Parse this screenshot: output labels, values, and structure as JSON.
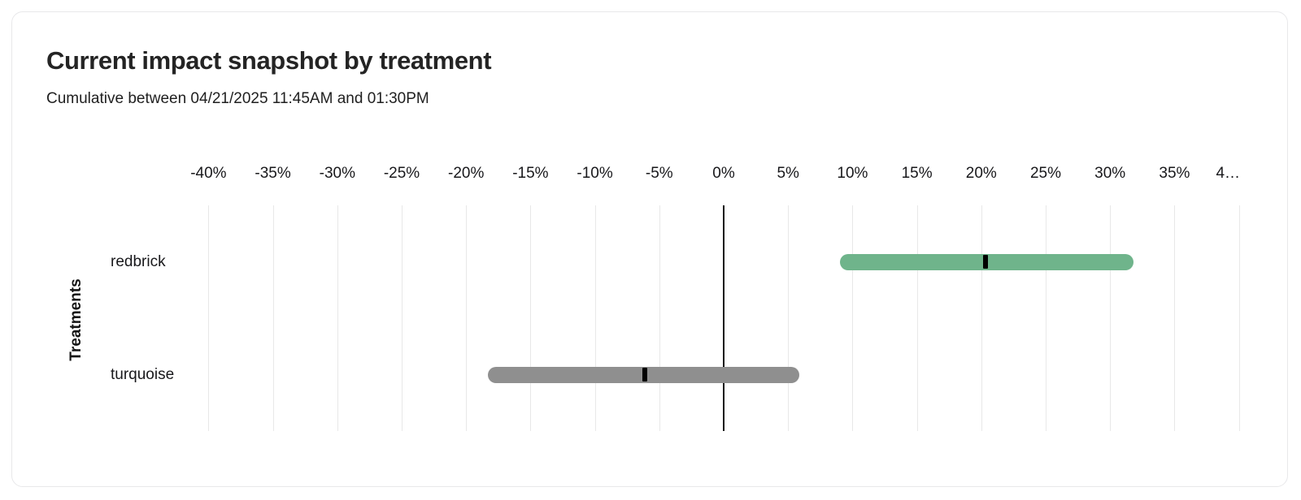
{
  "card": {
    "title": "Current impact snapshot by treatment",
    "subtitle": "Cumulative between 04/21/2025 11:45AM and 01:30PM"
  },
  "chart_data": {
    "type": "bar",
    "subtype": "horizontal_interval_bars_with_point_marker",
    "title": "Current impact snapshot by treatment",
    "subtitle": "Cumulative between 04/21/2025 11:45AM and 01:30PM",
    "xlabel": "",
    "ylabel": "Treatments",
    "categories": [
      "redbrick",
      "turquoise"
    ],
    "series": [
      {
        "name": "redbrick",
        "low": 9.0,
        "high": 31.8,
        "point": 20.3,
        "color": "#6FB48B"
      },
      {
        "name": "turquoise",
        "low": -18.3,
        "high": 5.9,
        "point": -6.1,
        "color": "#8F8F8F"
      }
    ],
    "x_axis": {
      "unit": "percent",
      "position": "top",
      "min": -40,
      "max": 40,
      "tick_step": 5,
      "tick_values": [
        -40,
        -35,
        -30,
        -25,
        -20,
        -15,
        -10,
        -5,
        0,
        5,
        10,
        15,
        20,
        25,
        30,
        35,
        40
      ],
      "tick_labels": [
        "-40%",
        "-35%",
        "-30%",
        "-25%",
        "-20%",
        "-15%",
        "-10%",
        "-5%",
        "0%",
        "5%",
        "10%",
        "15%",
        "20%",
        "25%",
        "30%",
        "35%",
        "4…"
      ],
      "zero_line": true,
      "grid": true
    },
    "marker_color": "#000000",
    "gridline_color": "#E8E8E8",
    "legend": "none"
  }
}
